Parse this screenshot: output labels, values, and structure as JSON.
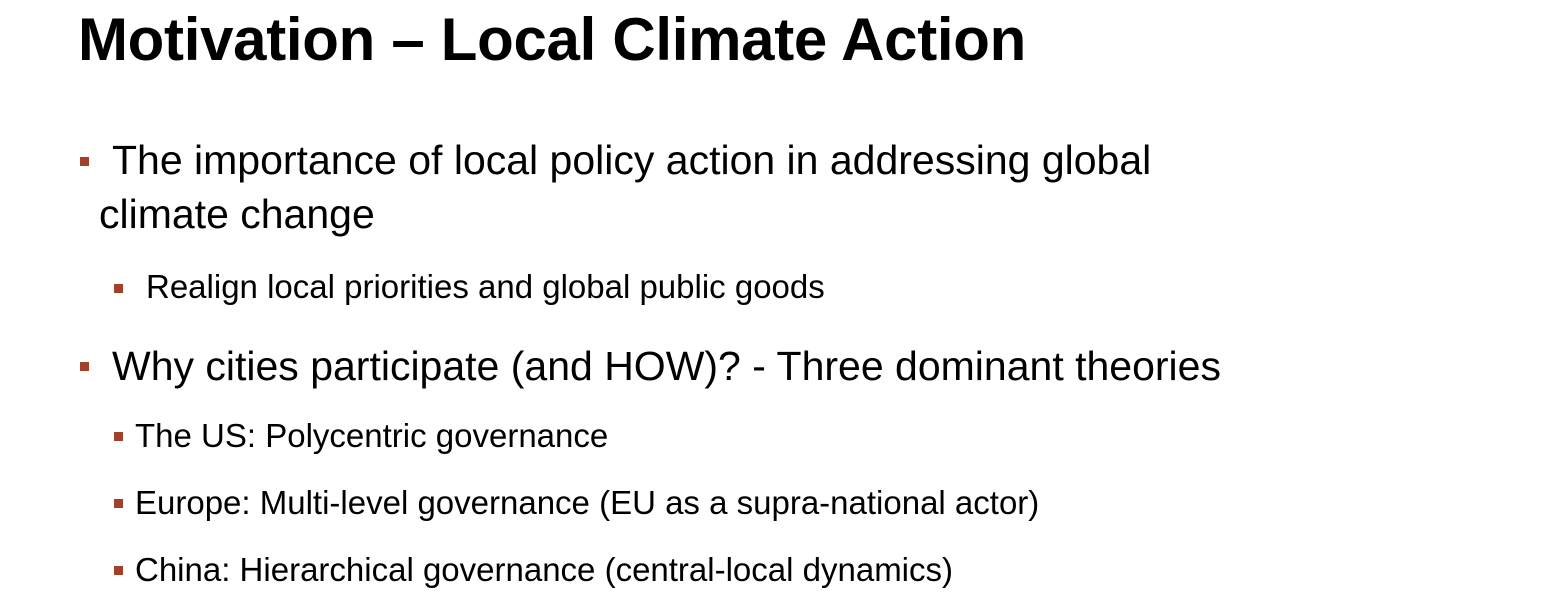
{
  "slide": {
    "title": "Motivation – Local Climate Action",
    "bullet_color": "#a0422b",
    "bullets": [
      {
        "level": 1,
        "line1": "The importance of local policy action in addressing global",
        "line2": "climate change"
      },
      {
        "level": 2,
        "text": "Realign local priorities and global public goods"
      },
      {
        "level": 1,
        "text": "Why cities participate (and HOW)? - Three dominant theories"
      },
      {
        "level": 2,
        "text": "The US: Polycentric governance"
      },
      {
        "level": 2,
        "text": "Europe: Multi-level governance (EU as a supra-national actor)"
      },
      {
        "level": 2,
        "text": "China: Hierarchical governance (central-local dynamics)"
      }
    ]
  }
}
